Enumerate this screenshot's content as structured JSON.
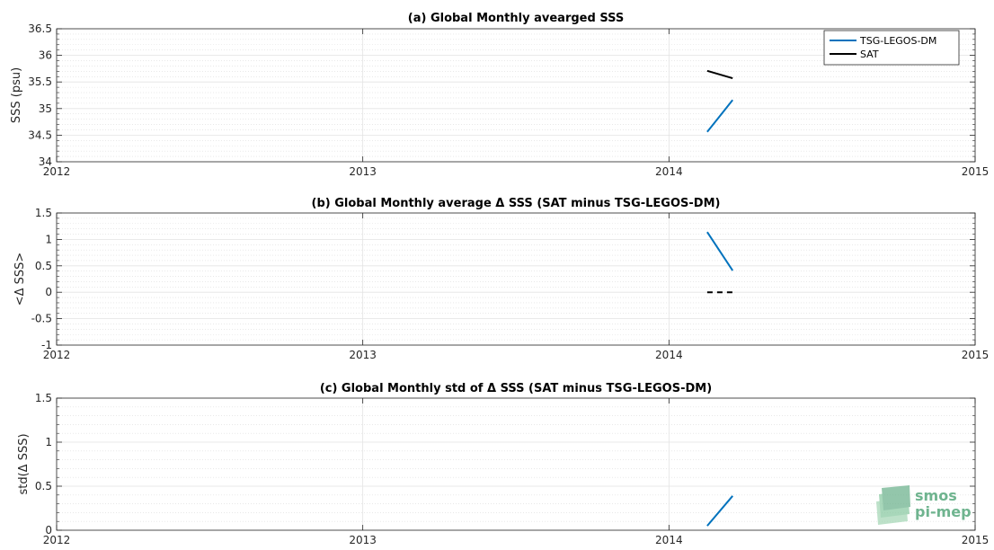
{
  "chart_data": [
    {
      "type": "line",
      "title": "(a) Global Monthly avearged SSS",
      "xlabel": "",
      "ylabel": "SSS (psu)",
      "xlim": [
        2012,
        2015
      ],
      "ylim": [
        34,
        36.5
      ],
      "xticks": [
        "2012",
        "2013",
        "2014",
        "2015"
      ],
      "yticks": [
        "34",
        "34.5",
        "35",
        "35.5",
        "36",
        "36.5"
      ],
      "ytick_values": [
        34,
        34.5,
        35,
        35.5,
        36,
        36.5
      ],
      "grid": true,
      "legend_position": "top-right",
      "series": [
        {
          "name": "TSG-LEGOS-DM",
          "color": "#0072bd",
          "style": "solid",
          "x": [
            2014.125,
            2014.208
          ],
          "y": [
            34.56,
            35.16
          ]
        },
        {
          "name": "SAT",
          "color": "#000000",
          "style": "solid",
          "x": [
            2014.125,
            2014.208
          ],
          "y": [
            35.71,
            35.57
          ]
        }
      ]
    },
    {
      "type": "line",
      "title": "(b) Global Monthly average Δ SSS (SAT minus TSG-LEGOS-DM)",
      "xlabel": "",
      "ylabel": "<Δ SSS>",
      "xlim": [
        2012,
        2015
      ],
      "ylim": [
        -1,
        1.5
      ],
      "xticks": [
        "2012",
        "2013",
        "2014",
        "2015"
      ],
      "yticks": [
        "-1",
        "-0.5",
        "0",
        "0.5",
        "1",
        "1.5"
      ],
      "ytick_values": [
        -1,
        -0.5,
        0,
        0.5,
        1,
        1.5
      ],
      "grid": true,
      "series": [
        {
          "color": "#0072bd",
          "style": "solid",
          "x": [
            2014.125,
            2014.208
          ],
          "y": [
            1.14,
            0.41
          ]
        },
        {
          "color": "#000000",
          "style": "dashed",
          "x": [
            2014.125,
            2014.208
          ],
          "y": [
            0,
            0
          ]
        }
      ]
    },
    {
      "type": "line",
      "title": "(c) Global Monthly std of Δ SSS (SAT minus TSG-LEGOS-DM)",
      "xlabel": "",
      "ylabel": "std(Δ SSS)",
      "xlim": [
        2012,
        2015
      ],
      "ylim": [
        0,
        1.5
      ],
      "xticks": [
        "2012",
        "2013",
        "2014",
        "2015"
      ],
      "yticks": [
        "0",
        "0.5",
        "1",
        "1.5"
      ],
      "ytick_values": [
        0,
        0.5,
        1,
        1.5
      ],
      "grid": true,
      "series": [
        {
          "color": "#0072bd",
          "style": "solid",
          "x": [
            2014.125,
            2014.208
          ],
          "y": [
            0.05,
            0.39
          ]
        }
      ]
    }
  ],
  "logo": {
    "line1": "smos",
    "line2": "pi-mep",
    "color": "#6fb48f"
  }
}
